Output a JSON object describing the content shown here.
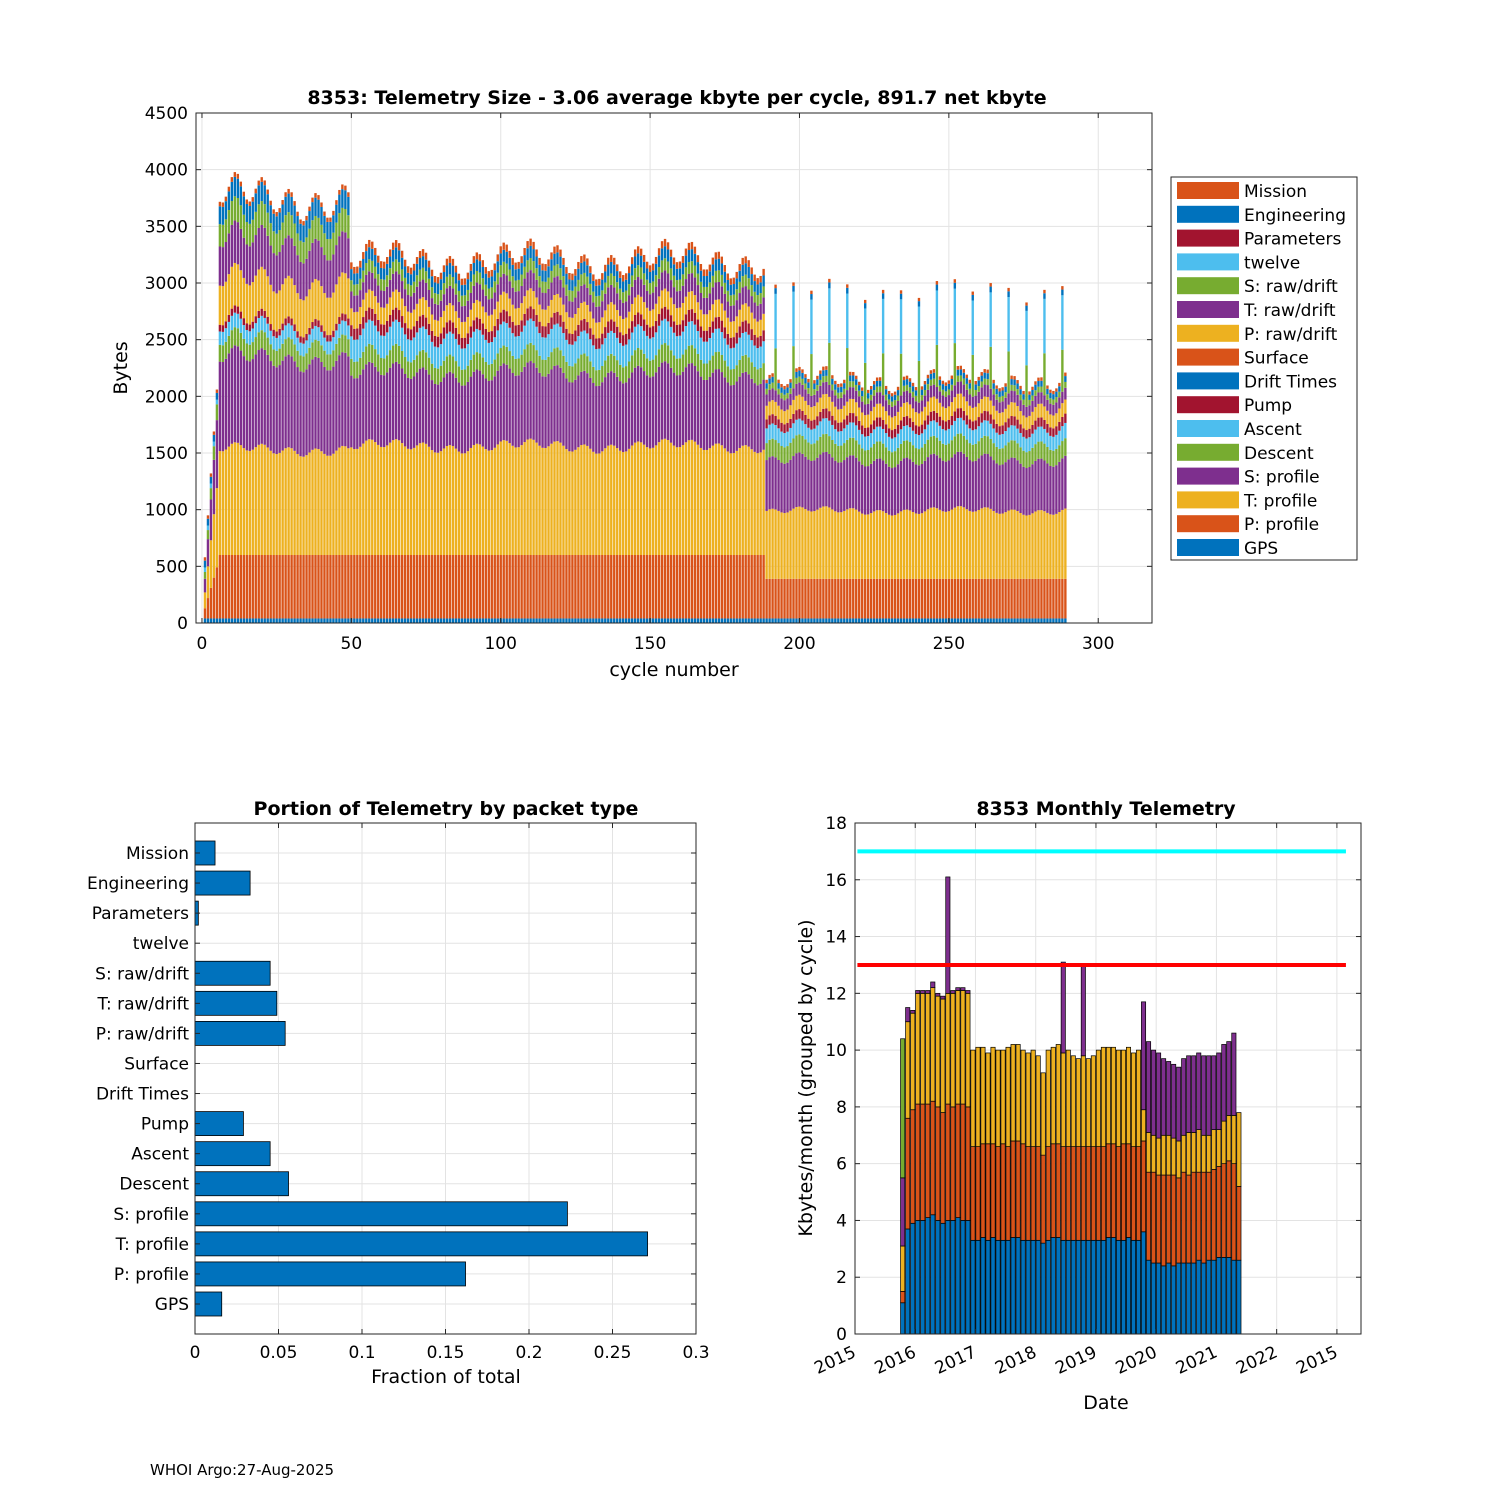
{
  "footer": "WHOI Argo:27-Aug-2025",
  "colors": {
    "blue": "#0072BD",
    "orange": "#D95319",
    "yellow": "#EDB120",
    "purple": "#7E2F8E",
    "green": "#77AC30",
    "lightblue": "#4DBEEE",
    "darkred": "#A2142F",
    "cyan": "#00FFFF",
    "red": "#FF0000",
    "grid": "#e3e3e3",
    "axis": "#262626"
  },
  "chart_data": [
    {
      "id": "telemetry-size",
      "type": "bar",
      "stacked": true,
      "title": "8353: Telemetry Size - 3.06 average kbyte per cycle,  891.7 net kbyte",
      "xlabel": "cycle number",
      "ylabel": "Bytes",
      "xlim": [
        -2,
        318
      ],
      "ylim": [
        0,
        4500
      ],
      "xticks": [
        0,
        50,
        100,
        150,
        200,
        250,
        300
      ],
      "yticks": [
        0,
        500,
        1000,
        1500,
        2000,
        2500,
        3000,
        3500,
        4000,
        4500
      ],
      "grid": true,
      "legend_position": "outside-right",
      "legend": [
        "Mission",
        "Engineering",
        "Parameters",
        "twelve",
        "S: raw/drift",
        "T: raw/drift",
        "P: raw/drift",
        "Surface",
        "Drift Times",
        "Pump",
        "Ascent",
        "Descent",
        "S: profile",
        "T: profile",
        "P: profile",
        "GPS"
      ],
      "legend_colors": [
        "#D95319",
        "#0072BD",
        "#A2142F",
        "#4DBEEE",
        "#77AC30",
        "#7E2F8E",
        "#EDB120",
        "#D95319",
        "#0072BD",
        "#A2142F",
        "#4DBEEE",
        "#77AC30",
        "#7E2F8E",
        "#EDB120",
        "#D95319",
        "#0072BD"
      ],
      "cycles": {
        "first": 1,
        "last": 289
      },
      "stack_order_bottom_up": [
        "GPS",
        "P: profile",
        "T: profile",
        "S: profile",
        "Descent",
        "Ascent",
        "Pump",
        "Drift Times",
        "Surface",
        "P: raw/drift",
        "T: raw/drift",
        "S: raw/drift",
        "twelve",
        "Parameters",
        "Engineering",
        "Mission"
      ],
      "approx_segments_by_cycle_range": [
        {
          "cycles": [
            6,
            49
          ],
          "GPS": 40,
          "P: profile": 560,
          "T: profile": 930,
          "S: profile": 800,
          "Descent": 150,
          "Ascent": 120,
          "Pump": 60,
          "P: raw/drift": 350,
          "T: raw/drift": 350,
          "S: raw/drift": 200,
          "Engineering": 160,
          "Mission": 40,
          "total": 3800
        },
        {
          "cycles": [
            50,
            188
          ],
          "GPS": 40,
          "P: profile": 560,
          "T: profile": 960,
          "S: profile": 640,
          "Descent": 150,
          "Ascent": 200,
          "Pump": 100,
          "P: raw/drift": 150,
          "T: raw/drift": 150,
          "S: raw/drift": 100,
          "Engineering": 100,
          "Mission": 60,
          "total": 3200
        },
        {
          "cycles": [
            189,
            289
          ],
          "GPS": 40,
          "P: profile": 350,
          "T: profile": 600,
          "S: profile": 450,
          "Descent": 150,
          "Ascent": 130,
          "Pump": 80,
          "P: raw/drift": 120,
          "T: raw/drift": 100,
          "S: raw/drift": 50,
          "Engineering": 50,
          "Mission": 30,
          "total": 2300,
          "spike_every_6_cycles_total": 3100
        }
      ]
    },
    {
      "id": "portion-by-packet",
      "type": "bar",
      "orientation": "horizontal",
      "title": "Portion of Telemetry by packet type",
      "xlabel": "Fraction of total",
      "ylabel": "",
      "xlim": [
        0,
        0.3
      ],
      "xticks": [
        0,
        0.05,
        0.1,
        0.15,
        0.2,
        0.25,
        0.3
      ],
      "xtick_labels": [
        "0",
        "0.05",
        "0.1",
        "0.15",
        "0.2",
        "0.25",
        "0.3"
      ],
      "grid": true,
      "bar_color": "#0072BD",
      "categories": [
        "Mission",
        "Engineering",
        "Parameters",
        "twelve",
        "S: raw/drift",
        "T: raw/drift",
        "P: raw/drift",
        "Surface",
        "Drift Times",
        "Pump",
        "Ascent",
        "Descent",
        "S: profile",
        "T: profile",
        "P: profile",
        "GPS"
      ],
      "values": [
        0.012,
        0.033,
        0.002,
        0.0,
        0.045,
        0.049,
        0.054,
        0.0,
        0.0,
        0.029,
        0.045,
        0.056,
        0.223,
        0.271,
        0.162,
        0.016
      ]
    },
    {
      "id": "monthly-telemetry",
      "type": "bar",
      "stacked": true,
      "title": "8353 Monthly Telemetry",
      "xlabel": "Date",
      "ylabel": "Kbytes/month (grouped by cycle)",
      "ylim": [
        0,
        18
      ],
      "yticks": [
        0,
        2,
        4,
        6,
        8,
        10,
        12,
        14,
        16,
        18
      ],
      "xtick_labels": [
        "2015",
        "2016",
        "2017",
        "2018",
        "2019",
        "2020",
        "2021",
        "2022",
        "2015"
      ],
      "xlim_years": [
        2015.0,
        2023.4
      ],
      "grid": true,
      "reference_lines": [
        {
          "name": "upper-limit",
          "value": 17,
          "color": "#00FFFF"
        },
        {
          "name": "lower-limit",
          "value": 13,
          "color": "#FF0000"
        }
      ],
      "series_colors": [
        "#0072BD",
        "#D95319",
        "#EDB120",
        "#7E2F8E",
        "#77AC30"
      ],
      "monthly_start": 2015.75,
      "month_step": 0.0833,
      "months": [
        [
          1.1,
          0.4,
          1.6,
          2.4,
          4.9
        ],
        [
          3.7,
          3.9,
          3.4,
          0.5,
          0
        ],
        [
          3.9,
          4.0,
          3.4,
          0.1,
          0
        ],
        [
          4.0,
          4.1,
          3.9,
          0.1,
          0
        ],
        [
          4.0,
          4.1,
          3.9,
          0.1,
          0
        ],
        [
          4.1,
          4.0,
          3.9,
          0.1,
          0
        ],
        [
          4.2,
          4.0,
          4.0,
          0.2,
          0
        ],
        [
          4.0,
          4.0,
          3.9,
          0.1,
          0
        ],
        [
          3.9,
          3.9,
          4.0,
          0.1,
          0
        ],
        [
          4.0,
          4.1,
          3.9,
          4.1,
          0
        ],
        [
          4.0,
          4.0,
          4.0,
          0.1,
          0
        ],
        [
          4.1,
          4.0,
          4.0,
          0.1,
          0
        ],
        [
          4.0,
          4.1,
          4.0,
          0.1,
          0
        ],
        [
          4.0,
          4.0,
          4.0,
          0.1,
          0
        ],
        [
          3.3,
          3.3,
          3.4,
          0.0,
          0
        ],
        [
          3.3,
          3.3,
          3.5,
          0.0,
          0
        ],
        [
          3.4,
          3.3,
          3.4,
          0.0,
          0
        ],
        [
          3.3,
          3.4,
          3.2,
          0.0,
          0
        ],
        [
          3.4,
          3.3,
          3.4,
          0.0,
          0
        ],
        [
          3.3,
          3.3,
          3.4,
          0.0,
          0
        ],
        [
          3.3,
          3.4,
          3.3,
          0.0,
          0
        ],
        [
          3.3,
          3.3,
          3.5,
          0.0,
          0
        ],
        [
          3.4,
          3.4,
          3.4,
          0.0,
          0
        ],
        [
          3.4,
          3.4,
          3.4,
          0.0,
          0
        ],
        [
          3.3,
          3.4,
          3.3,
          0.0,
          0
        ],
        [
          3.3,
          3.3,
          3.3,
          0.0,
          0
        ],
        [
          3.3,
          3.3,
          3.4,
          0.0,
          0
        ],
        [
          3.3,
          3.3,
          3.2,
          0.0,
          0
        ],
        [
          3.2,
          3.1,
          2.9,
          0.0,
          0
        ],
        [
          3.3,
          3.3,
          3.4,
          0.0,
          0
        ],
        [
          3.4,
          3.3,
          3.4,
          0.0,
          0
        ],
        [
          3.4,
          3.3,
          3.5,
          0.0,
          0
        ],
        [
          3.3,
          3.3,
          3.3,
          3.2,
          0
        ],
        [
          3.3,
          3.3,
          3.4,
          0.0,
          0
        ],
        [
          3.3,
          3.3,
          3.2,
          0.0,
          0
        ],
        [
          3.3,
          3.3,
          3.1,
          0.0,
          0
        ],
        [
          3.3,
          3.3,
          3.2,
          3.2,
          0
        ],
        [
          3.3,
          3.3,
          3.1,
          0.0,
          0
        ],
        [
          3.3,
          3.3,
          3.2,
          0.0,
          0
        ],
        [
          3.3,
          3.3,
          3.4,
          0.0,
          0
        ],
        [
          3.3,
          3.3,
          3.5,
          0.0,
          0
        ],
        [
          3.4,
          3.3,
          3.4,
          0.0,
          0
        ],
        [
          3.4,
          3.3,
          3.4,
          0.0,
          0
        ],
        [
          3.3,
          3.3,
          3.4,
          0.0,
          0
        ],
        [
          3.3,
          3.4,
          3.3,
          0.0,
          0
        ],
        [
          3.4,
          3.3,
          3.4,
          0.0,
          0
        ],
        [
          3.3,
          3.3,
          3.3,
          0.0,
          0
        ],
        [
          3.3,
          3.3,
          3.4,
          0.0,
          0
        ],
        [
          3.6,
          3.2,
          1.1,
          3.8,
          0
        ],
        [
          2.6,
          3.1,
          1.4,
          3.2,
          0
        ],
        [
          2.5,
          3.2,
          1.3,
          3.0,
          0
        ],
        [
          2.5,
          3.1,
          1.3,
          3.0,
          0
        ],
        [
          2.4,
          3.2,
          1.4,
          2.7,
          0
        ],
        [
          2.5,
          3.1,
          1.4,
          2.6,
          0
        ],
        [
          2.4,
          3.2,
          1.3,
          2.6,
          0
        ],
        [
          2.5,
          3.0,
          1.3,
          2.6,
          0
        ],
        [
          2.5,
          3.2,
          1.3,
          2.7,
          0
        ],
        [
          2.5,
          3.1,
          1.5,
          2.7,
          0
        ],
        [
          2.5,
          3.2,
          1.4,
          2.7,
          0
        ],
        [
          2.6,
          3.1,
          1.5,
          2.7,
          0
        ],
        [
          2.5,
          3.2,
          1.3,
          2.8,
          0
        ],
        [
          2.6,
          3.1,
          1.3,
          2.8,
          0
        ],
        [
          2.6,
          3.2,
          1.4,
          2.6,
          0
        ],
        [
          2.7,
          3.2,
          1.3,
          2.7,
          0
        ],
        [
          2.7,
          3.3,
          1.5,
          2.7,
          0
        ],
        [
          2.7,
          3.4,
          1.6,
          2.6,
          0
        ],
        [
          2.6,
          3.4,
          1.7,
          2.9,
          0
        ],
        [
          2.6,
          2.6,
          2.6,
          0.0,
          0
        ]
      ]
    }
  ]
}
